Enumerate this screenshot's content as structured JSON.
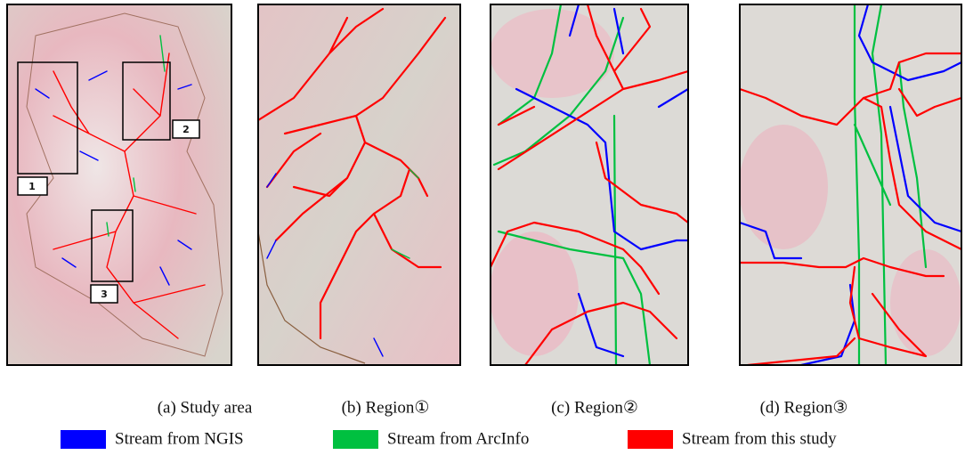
{
  "panels": [
    {
      "caption": "(a) Study area"
    },
    {
      "caption": "(b) Region①"
    },
    {
      "caption": "(c) Region②"
    },
    {
      "caption": "(d) Region③"
    }
  ],
  "study_area": {
    "region_labels": [
      "1",
      "2",
      "3"
    ]
  },
  "legend": [
    {
      "label": "Stream from NGIS",
      "color": "#0000ff"
    },
    {
      "label": "Stream from ArcInfo",
      "color": "#00c040"
    },
    {
      "label": "Stream from this study",
      "color": "#ff0000"
    }
  ]
}
